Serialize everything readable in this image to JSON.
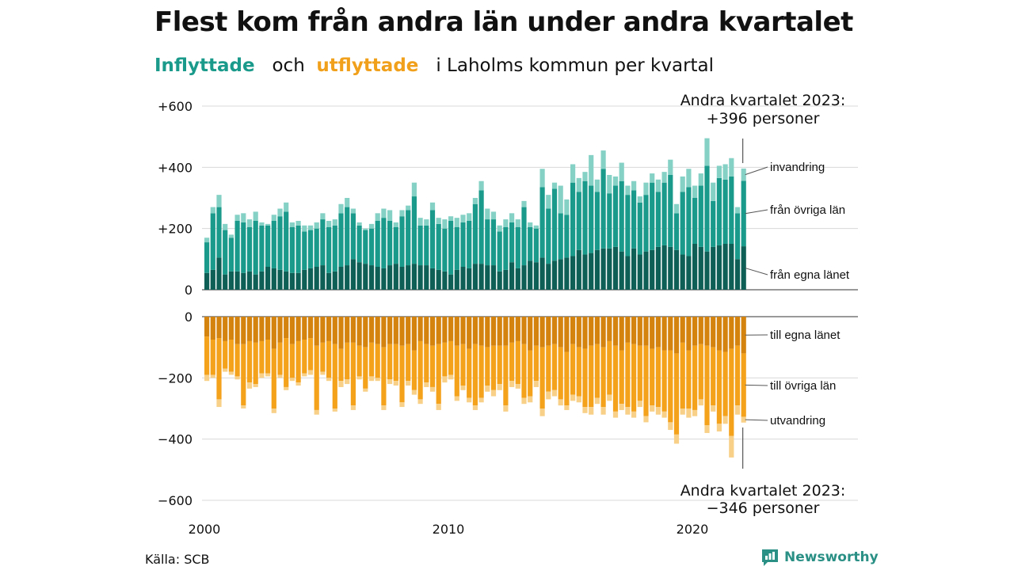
{
  "header": {
    "title": "Flest kom från andra län under andra kvartalet",
    "subtitle_in": "Inflyttade",
    "subtitle_and": "och",
    "subtitle_out": "utflyttade",
    "subtitle_rest": "i Laholms  kommun  per  kvartal"
  },
  "footer": {
    "source": "Källa: SCB",
    "brand": "Newsworthy"
  },
  "chart_data": {
    "type": "bar",
    "stacked": true,
    "layout": "diverging",
    "x_unit": "quarter",
    "x_start": "2000Q1",
    "x_end": "2023Q2",
    "x_ticks": [
      "2000",
      "2010",
      "2020"
    ],
    "top_panel": {
      "ylim": [
        0,
        600
      ],
      "ticks": [
        0,
        200,
        400,
        600
      ],
      "tick_labels": [
        "0",
        "+200",
        "+400",
        "+600"
      ],
      "series_inflow": [
        {
          "name": "från egna länet",
          "color": "#0e5f55",
          "values": [
            55,
            65,
            105,
            50,
            60,
            60,
            55,
            60,
            50,
            60,
            75,
            70,
            65,
            60,
            55,
            55,
            65,
            70,
            75,
            80,
            55,
            60,
            75,
            80,
            100,
            90,
            85,
            80,
            75,
            70,
            80,
            85,
            75,
            80,
            85,
            80,
            80,
            70,
            65,
            60,
            50,
            65,
            75,
            70,
            85,
            85,
            80,
            80,
            60,
            65,
            90,
            70,
            80,
            95,
            90,
            105,
            85,
            95,
            100,
            105,
            110,
            130,
            115,
            120,
            130,
            135,
            135,
            140,
            125,
            110,
            135,
            115,
            125,
            130,
            140,
            145,
            140,
            130,
            115,
            110,
            150,
            140,
            125,
            140,
            145,
            150,
            150,
            100,
            142
          ]
        },
        {
          "name": "från övriga län",
          "color": "#1a9a8a",
          "values": [
            100,
            185,
            165,
            145,
            110,
            165,
            165,
            145,
            175,
            150,
            135,
            155,
            175,
            195,
            150,
            155,
            125,
            125,
            125,
            150,
            150,
            150,
            175,
            190,
            150,
            120,
            110,
            120,
            150,
            165,
            145,
            120,
            165,
            180,
            220,
            130,
            130,
            190,
            150,
            140,
            175,
            140,
            145,
            155,
            195,
            240,
            150,
            150,
            130,
            140,
            130,
            135,
            190,
            110,
            110,
            230,
            180,
            235,
            150,
            140,
            240,
            190,
            240,
            220,
            190,
            260,
            180,
            200,
            230,
            200,
            190,
            170,
            185,
            220,
            180,
            205,
            235,
            120,
            205,
            225,
            150,
            200,
            280,
            150,
            220,
            210,
            220,
            150,
            214
          ]
        },
        {
          "name": "invandring",
          "color": "#86d1c6",
          "values": [
            15,
            20,
            40,
            20,
            10,
            20,
            30,
            25,
            30,
            10,
            5,
            20,
            25,
            30,
            15,
            15,
            20,
            15,
            20,
            20,
            20,
            20,
            30,
            30,
            15,
            10,
            5,
            15,
            25,
            30,
            35,
            15,
            20,
            15,
            45,
            25,
            20,
            25,
            20,
            30,
            15,
            30,
            25,
            25,
            20,
            30,
            35,
            25,
            20,
            25,
            30,
            25,
            20,
            15,
            10,
            60,
            45,
            20,
            90,
            50,
            60,
            45,
            30,
            100,
            40,
            60,
            60,
            30,
            60,
            30,
            30,
            20,
            40,
            30,
            40,
            35,
            50,
            30,
            50,
            60,
            40,
            40,
            90,
            60,
            40,
            50,
            60,
            20,
            40
          ]
        }
      ]
    },
    "bottom_panel": {
      "ylim": [
        -600,
        0
      ],
      "ticks": [
        0,
        -200,
        -400,
        -600
      ],
      "tick_labels": [
        "0",
        "−200",
        "−400",
        "−600"
      ],
      "series_outflow": [
        {
          "name": "till egna länet",
          "color": "#d4830f",
          "values": [
            -65,
            -75,
            -70,
            -80,
            -75,
            -90,
            -90,
            -80,
            -85,
            -80,
            -75,
            -105,
            -85,
            -70,
            -90,
            -80,
            -75,
            -70,
            -95,
            -85,
            -80,
            -90,
            -105,
            -85,
            -85,
            -95,
            -100,
            -85,
            -90,
            -100,
            -90,
            -90,
            -95,
            -90,
            -110,
            -80,
            -90,
            -95,
            -90,
            -85,
            -80,
            -95,
            -90,
            -105,
            -90,
            -95,
            -100,
            -95,
            -95,
            -95,
            -85,
            -80,
            -90,
            -110,
            -95,
            -100,
            -95,
            -90,
            -100,
            -115,
            -90,
            -100,
            -105,
            -95,
            -90,
            -100,
            -80,
            -95,
            -110,
            -85,
            -90,
            -95,
            -95,
            -105,
            -100,
            -110,
            -110,
            -120,
            -85,
            -110,
            -95,
            -90,
            -95,
            -100,
            -110,
            -115,
            -105,
            -95,
            -120
          ]
        },
        {
          "name": "till övriga län",
          "color": "#f4a11b",
          "values": [
            -125,
            -115,
            -200,
            -90,
            -105,
            -105,
            -200,
            -135,
            -135,
            -105,
            -110,
            -195,
            -105,
            -160,
            -110,
            -135,
            -110,
            -105,
            -210,
            -95,
            -120,
            -210,
            -105,
            -120,
            -205,
            -100,
            -135,
            -110,
            -110,
            -190,
            -115,
            -120,
            -185,
            -120,
            -130,
            -190,
            -125,
            -135,
            -195,
            -110,
            -110,
            -165,
            -135,
            -160,
            -200,
            -170,
            -125,
            -145,
            -125,
            -195,
            -125,
            -140,
            -175,
            -150,
            -115,
            -200,
            -150,
            -150,
            -170,
            -175,
            -165,
            -160,
            -190,
            -200,
            -175,
            -195,
            -175,
            -215,
            -175,
            -210,
            -220,
            -180,
            -230,
            -185,
            -195,
            -200,
            -235,
            -265,
            -215,
            -190,
            -210,
            -180,
            -260,
            -190,
            -240,
            -210,
            -285,
            -195,
            -207
          ]
        },
        {
          "name": "utvandring",
          "color": "#f8d087",
          "values": [
            -20,
            -10,
            -25,
            -10,
            -10,
            -10,
            -10,
            -20,
            -10,
            -15,
            -10,
            -15,
            -10,
            -10,
            -10,
            -10,
            -10,
            -15,
            -15,
            -10,
            -10,
            -10,
            -20,
            -15,
            -15,
            -10,
            -10,
            -15,
            -10,
            -15,
            -15,
            -15,
            -15,
            -15,
            -15,
            -15,
            -15,
            -15,
            -20,
            -20,
            -15,
            -15,
            -15,
            -15,
            -15,
            -15,
            -20,
            -20,
            -20,
            -20,
            -20,
            -15,
            -20,
            -20,
            -20,
            -25,
            -25,
            -20,
            -20,
            -15,
            -20,
            -20,
            -20,
            -25,
            -20,
            -25,
            -20,
            -20,
            -20,
            -25,
            -20,
            -20,
            -20,
            -20,
            -25,
            -20,
            -25,
            -30,
            -20,
            -30,
            -20,
            -20,
            -25,
            -20,
            -25,
            -25,
            -70,
            -30,
            -19
          ]
        }
      ]
    },
    "annotations": {
      "top_line1": "Andra kvartalet 2023:",
      "top_line2": "+396 personer",
      "bottom_line1": "Andra kvartalet 2023:",
      "bottom_line2": "−346 personer"
    },
    "grid": true
  },
  "colors": {
    "in_accent": "#1a9a8a",
    "out_accent": "#f0a01a",
    "brand": "#2a8f85"
  }
}
